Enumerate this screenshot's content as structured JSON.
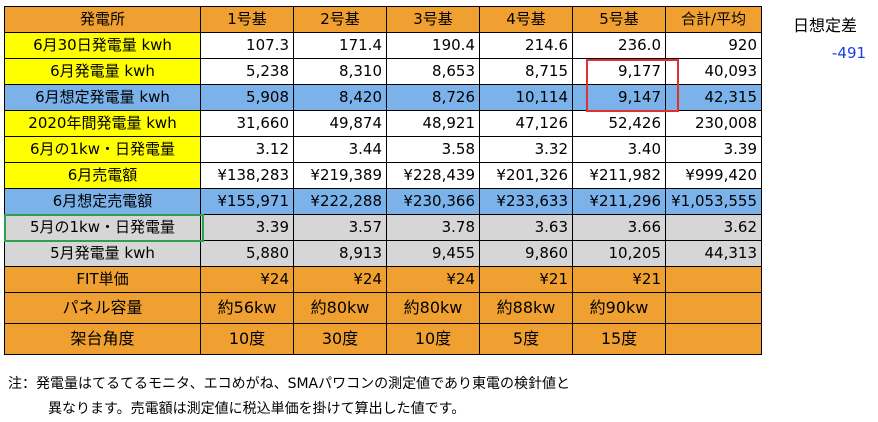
{
  "header": [
    "発電所",
    "1号基",
    "2号基",
    "3号基",
    "4号基",
    "5号基",
    "合計/平均"
  ],
  "rows": [
    {
      "label": "6月30日発電量 kwh",
      "values": [
        "107.3",
        "171.4",
        "190.4",
        "214.6",
        "236.0",
        "920"
      ]
    },
    {
      "label": "6月発電量 kwh",
      "values": [
        "5,238",
        "8,310",
        "8,653",
        "8,715",
        "9,177",
        "40,093"
      ]
    },
    {
      "label": "6月想定発電量 kwh",
      "values": [
        "5,908",
        "8,420",
        "8,726",
        "10,114",
        "9,147",
        "42,315"
      ]
    },
    {
      "label": "2020年間発電量 kwh",
      "values": [
        "31,660",
        "49,874",
        "48,921",
        "47,126",
        "52,426",
        "230,008"
      ]
    },
    {
      "label": "6月の1kw・日発電量",
      "values": [
        "3.12",
        "3.44",
        "3.58",
        "3.32",
        "3.40",
        "3.39"
      ]
    },
    {
      "label": "6月売電額",
      "values": [
        "¥138,283",
        "¥219,389",
        "¥228,439",
        "¥201,326",
        "¥211,982",
        "¥999,420"
      ]
    },
    {
      "label": "6月想定売電額",
      "values": [
        "¥155,971",
        "¥222,288",
        "¥230,366",
        "¥233,633",
        "¥211,296",
        "¥1,053,555"
      ]
    },
    {
      "label": "5月の1kw・日発電量",
      "values": [
        "3.39",
        "3.57",
        "3.78",
        "3.63",
        "3.66",
        "3.62"
      ]
    },
    {
      "label": "5月発電量 kwh",
      "values": [
        "5,880",
        "8,913",
        "9,455",
        "9,860",
        "10,205",
        "44,313"
      ]
    },
    {
      "label": "FIT単価",
      "values": [
        "¥24",
        "¥24",
        "¥24",
        "¥21",
        "¥21",
        ""
      ]
    },
    {
      "label": "パネル容量",
      "values": [
        "約56kw",
        "約80kw",
        "約80kw",
        "約88kw",
        "約90kw",
        ""
      ]
    },
    {
      "label": "架台角度",
      "values": [
        "10度",
        "30度",
        "10度",
        "5度",
        "15度",
        ""
      ]
    }
  ],
  "side": {
    "label": "日想定差",
    "value": "-491"
  },
  "note": {
    "line1": "注：発電量はてるてるモニタ、エコめがね、SMAパワコンの測定値であり東電の検針値と",
    "line2": "異なります。売電額は測定値に税込単価を掛けて算出した値です。"
  },
  "colors": {
    "orange": "#f0a030",
    "yellow": "#ffff00",
    "blue": "#7bb2ea",
    "gray": "#d6d6d6",
    "red_highlight": "#e03030",
    "green_highlight": "#30a050",
    "side_value": "#1a3ee0"
  }
}
